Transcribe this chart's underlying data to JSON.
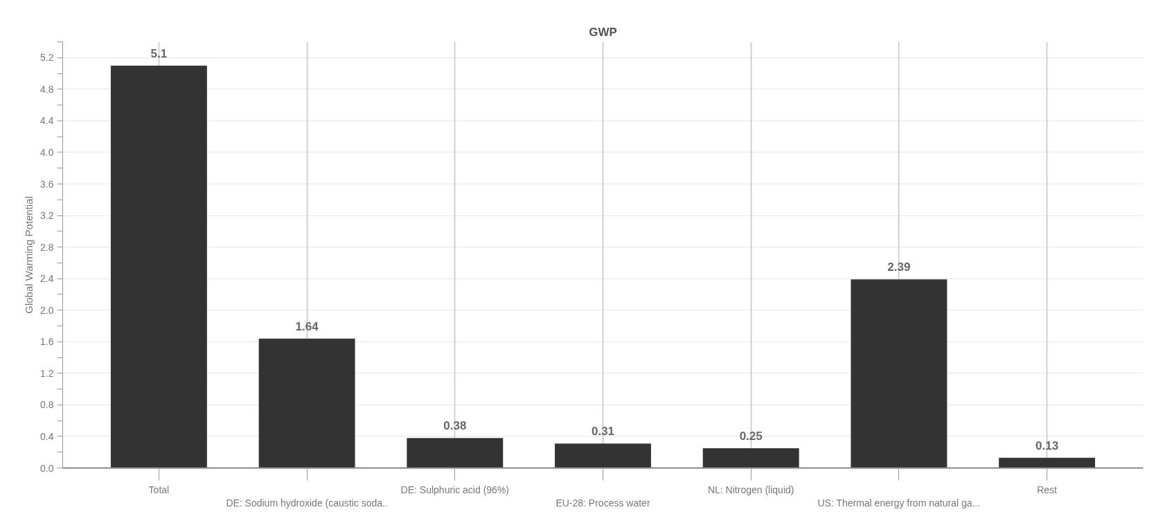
{
  "chart_data": {
    "type": "bar",
    "title": "GWP",
    "ylabel": "Global Warming Potential",
    "categories": [
      "Total",
      "DE: Sodium hydroxide (caustic soda..",
      "DE: Sulphuric acid (96%)",
      "EU-28: Process water",
      "NL: Nitrogen (liquid)",
      "US: Thermal energy from natural ga...",
      "Rest"
    ],
    "values": [
      5.1,
      1.64,
      0.38,
      0.31,
      0.25,
      2.39,
      0.13
    ],
    "color": "#333333",
    "data_labels": true,
    "ylim": [
      0,
      5.4
    ],
    "yticks": [
      {
        "value": 0,
        "label": "0.0"
      },
      {
        "value": 0.2,
        "label": null
      },
      {
        "value": 0.4,
        "label": "0.4"
      },
      {
        "value": 0.6,
        "label": null
      },
      {
        "value": 0.8,
        "label": "0.8"
      },
      {
        "value": 1.0,
        "label": null
      },
      {
        "value": 1.2,
        "label": "1.2"
      },
      {
        "value": 1.4,
        "label": null
      },
      {
        "value": 1.6,
        "label": "1.6"
      },
      {
        "value": 1.8,
        "label": null
      },
      {
        "value": 2.0,
        "label": "2.0"
      },
      {
        "value": 2.2,
        "label": null
      },
      {
        "value": 2.4,
        "label": "2.4"
      },
      {
        "value": 2.6,
        "label": null
      },
      {
        "value": 2.8,
        "label": "2.8"
      },
      {
        "value": 3.0,
        "label": null
      },
      {
        "value": 3.2,
        "label": "3.2"
      },
      {
        "value": 3.4,
        "label": null
      },
      {
        "value": 3.6,
        "label": "3.6"
      },
      {
        "value": 3.8,
        "label": null
      },
      {
        "value": 4.0,
        "label": "4.0"
      },
      {
        "value": 4.2,
        "label": null
      },
      {
        "value": 4.4,
        "label": "4.4"
      },
      {
        "value": 4.6,
        "label": null
      },
      {
        "value": 4.8,
        "label": "4.8"
      },
      {
        "value": 5.0,
        "label": null
      },
      {
        "value": 5.2,
        "label": "5.2"
      },
      {
        "value": 5.4,
        "label": null
      }
    ],
    "grid": true
  }
}
